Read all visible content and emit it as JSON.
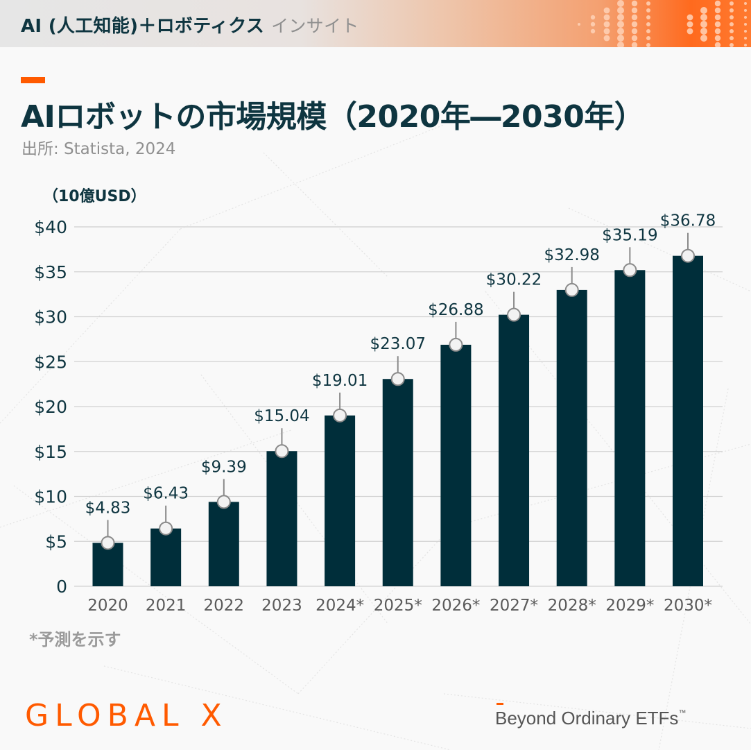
{
  "header": {
    "title": "AI (人工知能)＋ロボティクス",
    "subtitle": "インサイト",
    "gradient_colors": [
      "#e6e6e6",
      "#f4a070",
      "#ff6a1e"
    ]
  },
  "title": {
    "main": "AIロボットの市場規模（2020年―2030年）",
    "source": "出所: Statista, 2024",
    "accent_color": "#ff5a00"
  },
  "chart": {
    "unit_label": "（10億USD）",
    "footnote": "*予測を示す"
  },
  "chart_data": {
    "type": "bar",
    "title": "AIロボットの市場規模（2020年―2030年）",
    "subtitle": "出所: Statista, 2024",
    "xlabel": "",
    "ylabel": "（10億USD）",
    "categories": [
      "2020",
      "2021",
      "2022",
      "2023",
      "2024*",
      "2025*",
      "2026*",
      "2027*",
      "2028*",
      "2029*",
      "2030*"
    ],
    "values": [
      4.83,
      6.43,
      9.39,
      15.04,
      19.01,
      23.07,
      26.88,
      30.22,
      32.98,
      35.19,
      36.78
    ],
    "data_labels": [
      "$4.83",
      "$6.43",
      "$9.39",
      "$15.04",
      "$19.01",
      "$23.07",
      "$26.88",
      "$30.22",
      "$32.98",
      "$35.19",
      "$36.78"
    ],
    "yticks": [
      0,
      5,
      10,
      15,
      20,
      25,
      30,
      35,
      40
    ],
    "ytick_labels": [
      "0",
      "$5",
      "$10",
      "$15",
      "$20",
      "$25",
      "$30",
      "$35",
      "$40"
    ],
    "ylim": [
      0,
      40
    ],
    "grid": true,
    "legend": null,
    "bar_color": "#002e3a",
    "annotation": "*予測を示す"
  },
  "footer": {
    "logo": "GLOBAL X",
    "tagline": "Beyond Ordinary ETFs",
    "trademark": "™",
    "brand_color": "#ff5a00"
  }
}
